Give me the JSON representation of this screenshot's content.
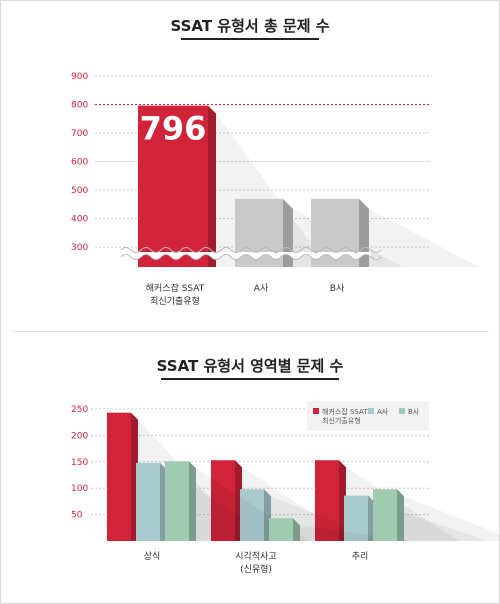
{
  "chart_data": [
    {
      "type": "bar",
      "title": "SSAT 유형서 총 문제 수",
      "categories": [
        [
          "해커스잡 SSAT",
          "최신기출유형"
        ],
        [
          "A사"
        ],
        [
          "B사"
        ]
      ],
      "values": [
        796,
        469,
        469
      ],
      "data_labels": [
        "796",
        "",
        ""
      ],
      "yticks": [
        300,
        400,
        500,
        600,
        700,
        800,
        900
      ],
      "ylim": [
        250,
        900
      ],
      "axis_break": true,
      "grid": "dotted",
      "reference_line": 800,
      "colors": [
        "#d1243a",
        "#c9c9c9",
        "#c9c9c9"
      ]
    },
    {
      "type": "bar",
      "title": "SSAT 유형서 영역별 문제 수",
      "categories": [
        [
          "상식"
        ],
        [
          "시각적사고",
          "(신유형)"
        ],
        [
          "추리"
        ]
      ],
      "series": [
        {
          "name": "해커스잡 SSAT 최신기출유형",
          "values": [
            243,
            153,
            153
          ],
          "color": "#d1243a"
        },
        {
          "name": "A사",
          "values": [
            148,
            98,
            86
          ],
          "color": "#a9cbcf"
        },
        {
          "name": "B사",
          "values": [
            151,
            43,
            98
          ],
          "color": "#9fcbb0"
        }
      ],
      "legend": {
        "position": "top-right",
        "entries": [
          [
            "해커스잡 SSAT",
            "최신기출유형"
          ],
          [
            "A사"
          ],
          [
            "B사"
          ]
        ]
      },
      "yticks": [
        50,
        100,
        150,
        200,
        250
      ],
      "ylim": [
        0,
        260
      ],
      "grid": "dotted"
    }
  ]
}
